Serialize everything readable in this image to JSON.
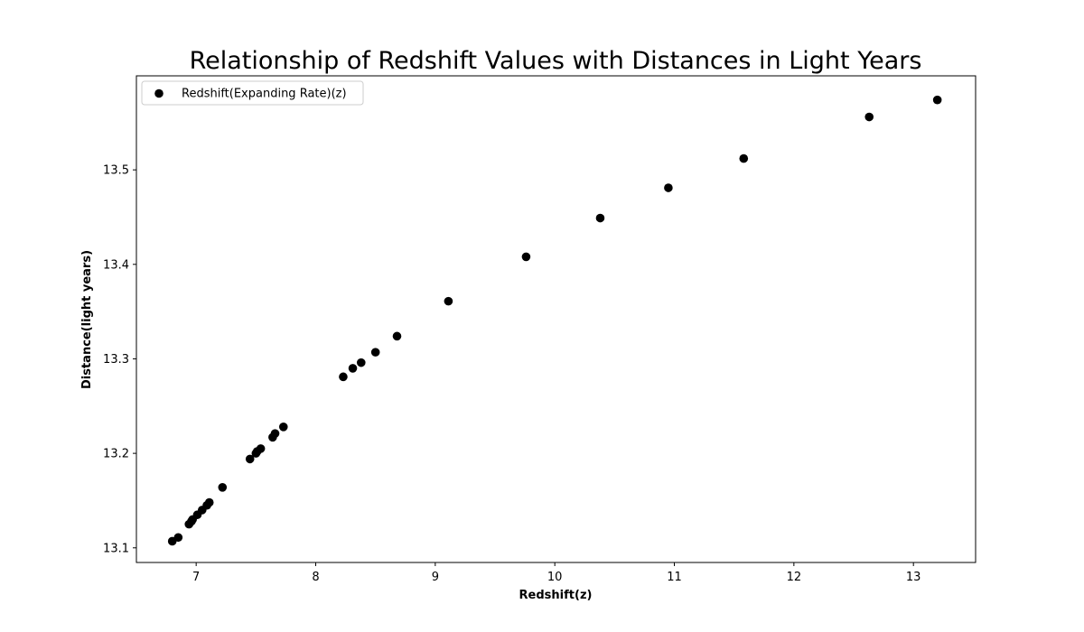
{
  "chart_data": {
    "type": "scatter",
    "title": "Relationship of Redshift Values with Distances in Light Years",
    "xlabel": "Redshift(z)",
    "ylabel": "Distance(light years)",
    "xlim": [
      6.5,
      13.52
    ],
    "ylim": [
      13.0845,
      13.5995
    ],
    "xticks": [
      7,
      8,
      9,
      10,
      11,
      12,
      13
    ],
    "yticks": [
      13.1,
      13.2,
      13.3,
      13.4,
      13.5
    ],
    "ytick_labels": [
      "13.1",
      "13.2",
      "13.3",
      "13.4",
      "13.5"
    ],
    "grid": false,
    "legend_position": "top-left",
    "series": [
      {
        "name": "Redshift(Expanding Rate)(z)",
        "color": "#000000",
        "marker": "circle",
        "points": [
          {
            "x": 6.8,
            "y": 13.107
          },
          {
            "x": 6.85,
            "y": 13.111
          },
          {
            "x": 6.94,
            "y": 13.125
          },
          {
            "x": 6.96,
            "y": 13.128
          },
          {
            "x": 6.97,
            "y": 13.13
          },
          {
            "x": 7.01,
            "y": 13.135
          },
          {
            "x": 7.05,
            "y": 13.14
          },
          {
            "x": 7.09,
            "y": 13.145
          },
          {
            "x": 7.11,
            "y": 13.148
          },
          {
            "x": 7.22,
            "y": 13.164
          },
          {
            "x": 7.45,
            "y": 13.194
          },
          {
            "x": 7.5,
            "y": 13.2
          },
          {
            "x": 7.51,
            "y": 13.202
          },
          {
            "x": 7.54,
            "y": 13.205
          },
          {
            "x": 7.64,
            "y": 13.217
          },
          {
            "x": 7.66,
            "y": 13.221
          },
          {
            "x": 7.73,
            "y": 13.228
          },
          {
            "x": 8.23,
            "y": 13.281
          },
          {
            "x": 8.31,
            "y": 13.29
          },
          {
            "x": 8.38,
            "y": 13.296
          },
          {
            "x": 8.5,
            "y": 13.307
          },
          {
            "x": 8.68,
            "y": 13.324
          },
          {
            "x": 9.11,
            "y": 13.361
          },
          {
            "x": 9.76,
            "y": 13.408
          },
          {
            "x": 10.38,
            "y": 13.449
          },
          {
            "x": 10.95,
            "y": 13.481
          },
          {
            "x": 11.58,
            "y": 13.512
          },
          {
            "x": 12.63,
            "y": 13.556
          },
          {
            "x": 13.2,
            "y": 13.574
          }
        ]
      }
    ]
  }
}
